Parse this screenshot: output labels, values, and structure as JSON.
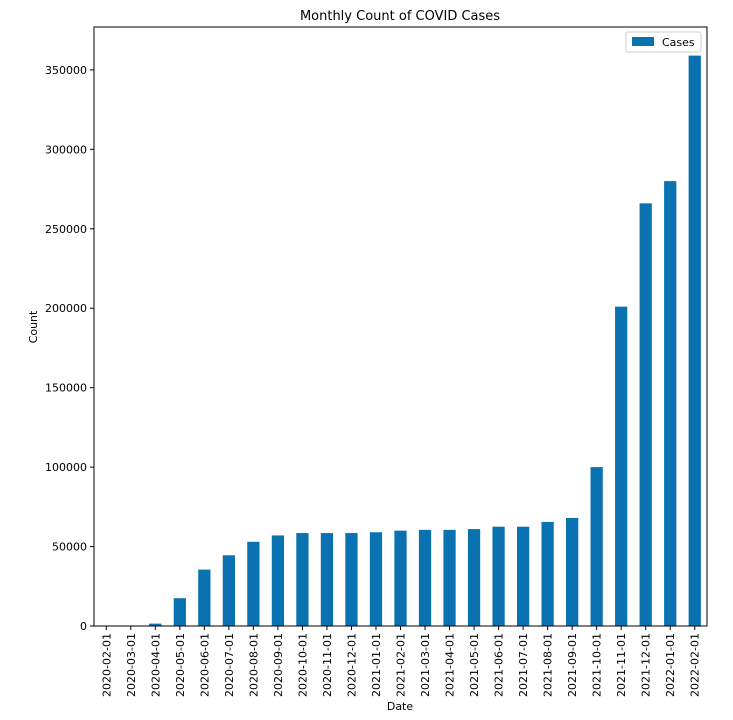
{
  "chart_data": {
    "type": "bar",
    "title": "Monthly Count of COVID Cases",
    "xlabel": "Date",
    "ylabel": "Count",
    "categories": [
      "2020-02-01",
      "2020-03-01",
      "2020-04-01",
      "2020-05-01",
      "2020-06-01",
      "2020-07-01",
      "2020-08-01",
      "2020-09-01",
      "2020-10-01",
      "2020-11-01",
      "2020-12-01",
      "2021-01-01",
      "2021-02-01",
      "2021-03-01",
      "2021-04-01",
      "2021-05-01",
      "2021-06-01",
      "2021-07-01",
      "2021-08-01",
      "2021-09-01",
      "2021-10-01",
      "2021-11-01",
      "2021-12-01",
      "2022-01-01",
      "2022-02-01"
    ],
    "series": [
      {
        "name": "Cases",
        "color": "#0a72b0",
        "values": [
          0,
          300,
          1500,
          17500,
          35500,
          44500,
          53000,
          57000,
          58500,
          58500,
          58500,
          59000,
          60000,
          60500,
          60500,
          61000,
          62500,
          62500,
          65500,
          68000,
          100000,
          201000,
          266000,
          280000,
          359000
        ]
      }
    ],
    "yticks": [
      0,
      50000,
      100000,
      150000,
      200000,
      250000,
      300000,
      350000
    ],
    "ylim": [
      0,
      377000
    ],
    "grid": false,
    "legend": {
      "position": "top-right",
      "entries": [
        "Cases"
      ]
    }
  }
}
